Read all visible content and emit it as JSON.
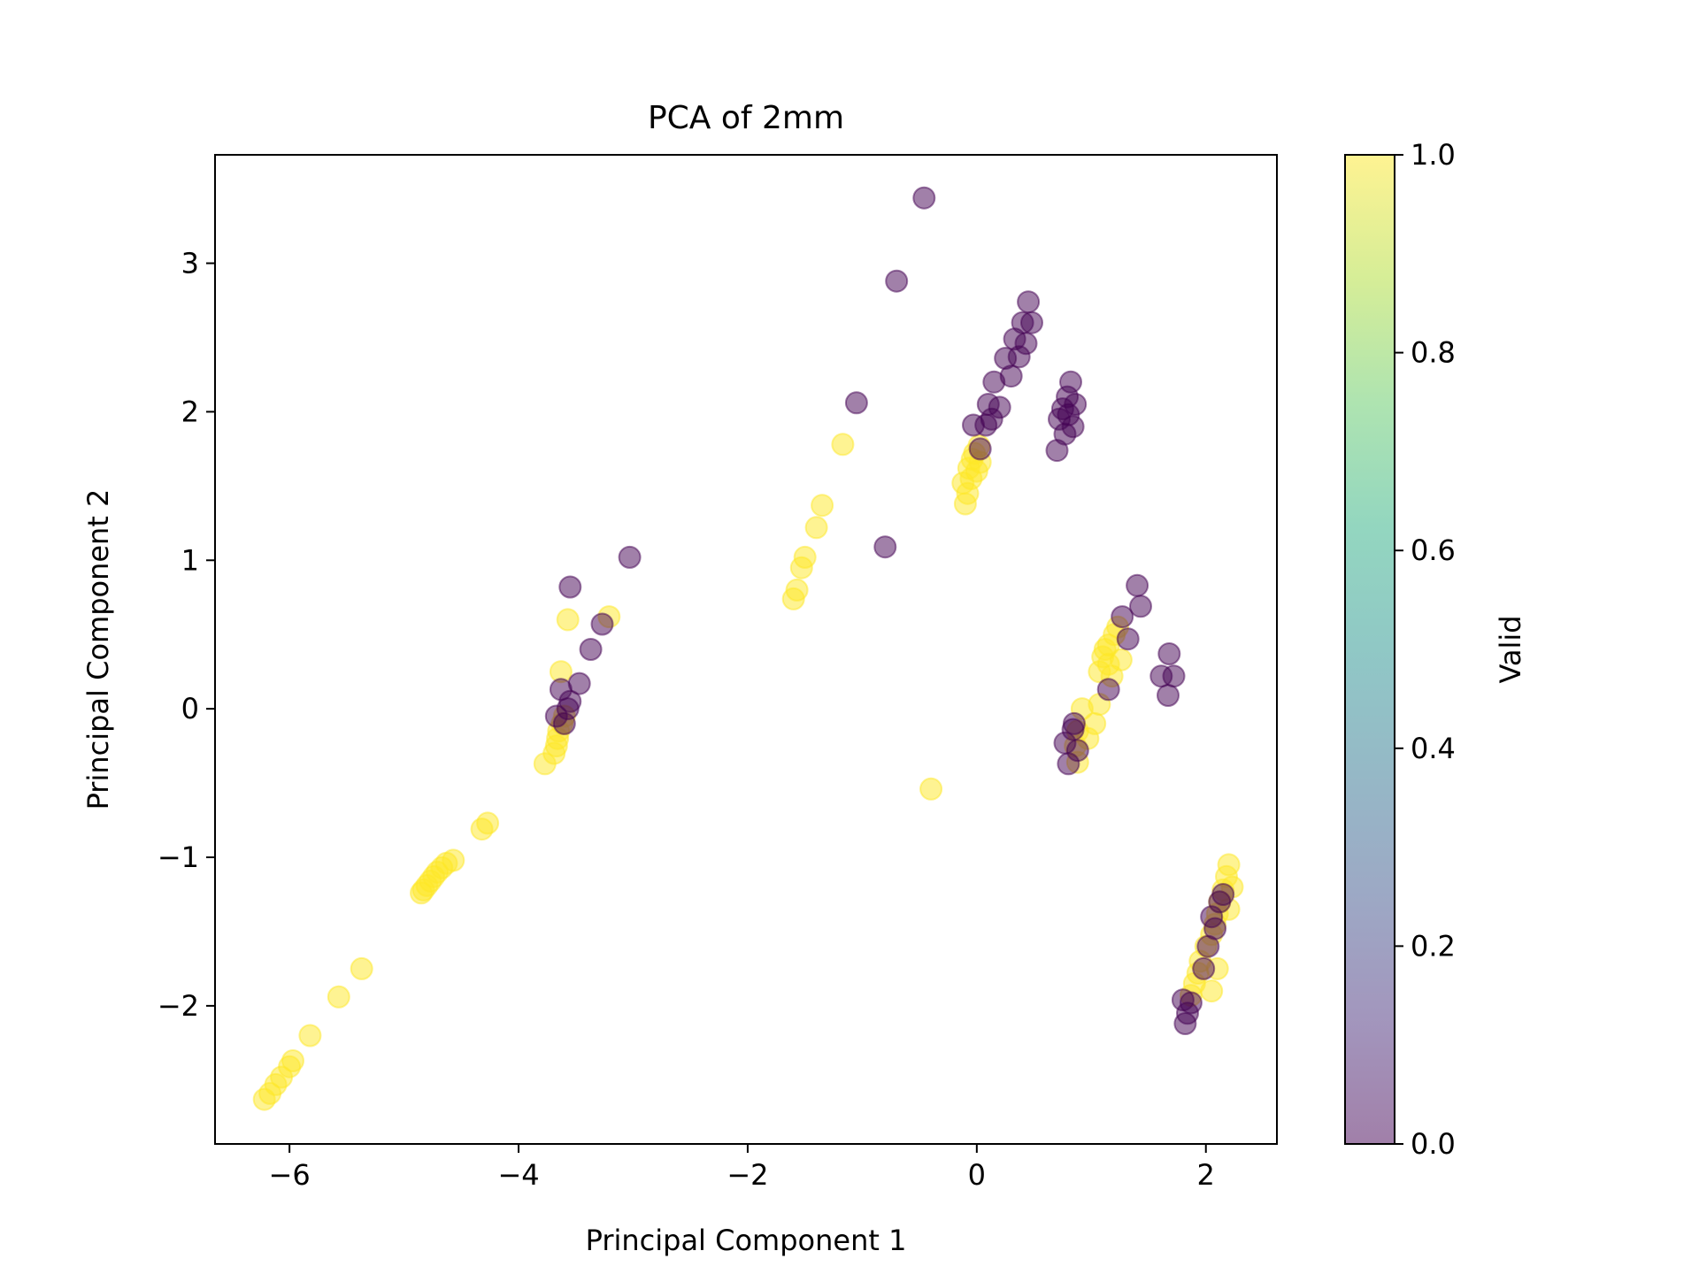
{
  "chart_data": {
    "type": "scatter",
    "title": "PCA of 2mm",
    "xlabel": "Principal Component 1",
    "ylabel": "Principal Component 2",
    "xlim": [
      -6.65,
      2.62
    ],
    "ylim": [
      -2.93,
      3.73
    ],
    "xticks": [
      -6,
      -4,
      -2,
      0,
      2
    ],
    "yticks": [
      -2,
      -1,
      0,
      1,
      2,
      3
    ],
    "grid": false,
    "colorbar": {
      "label": "Valid",
      "range": [
        0.0,
        1.0
      ],
      "ticks": [
        "0.0",
        "0.2",
        "0.4",
        "0.6",
        "0.8",
        "1.0"
      ],
      "colormap": "viridis",
      "alpha": 0.5
    },
    "colors": {
      "valid_0": "#440154",
      "valid_1": "#fde725"
    },
    "series": [
      {
        "valid": 1,
        "points": [
          [
            -6.22,
            -2.63
          ],
          [
            -6.17,
            -2.59
          ],
          [
            -6.12,
            -2.53
          ],
          [
            -6.07,
            -2.48
          ],
          [
            -6.0,
            -2.41
          ],
          [
            -5.97,
            -2.37
          ],
          [
            -5.82,
            -2.2
          ],
          [
            -5.57,
            -1.94
          ],
          [
            -5.37,
            -1.75
          ],
          [
            -4.85,
            -1.24
          ],
          [
            -4.83,
            -1.22
          ],
          [
            -4.8,
            -1.19
          ],
          [
            -4.77,
            -1.16
          ],
          [
            -4.74,
            -1.13
          ],
          [
            -4.71,
            -1.1
          ],
          [
            -4.67,
            -1.07
          ],
          [
            -4.63,
            -1.04
          ],
          [
            -4.57,
            -1.02
          ],
          [
            -4.32,
            -0.81
          ],
          [
            -4.27,
            -0.77
          ],
          [
            -3.77,
            -0.37
          ],
          [
            -3.69,
            -0.3
          ],
          [
            -3.67,
            -0.25
          ],
          [
            -3.66,
            -0.2
          ],
          [
            -3.65,
            -0.15
          ],
          [
            -3.62,
            -0.1
          ],
          [
            -3.6,
            -0.05
          ],
          [
            -3.63,
            0.25
          ],
          [
            -3.57,
            0.6
          ],
          [
            -3.21,
            0.62
          ],
          [
            -1.6,
            0.74
          ],
          [
            -1.57,
            0.8
          ],
          [
            -1.53,
            0.95
          ],
          [
            -1.5,
            1.02
          ],
          [
            -1.4,
            1.22
          ],
          [
            -1.35,
            1.37
          ],
          [
            -1.17,
            1.78
          ],
          [
            -0.4,
            -0.54
          ],
          [
            -0.1,
            1.38
          ],
          [
            -0.12,
            1.52
          ],
          [
            -0.08,
            1.45
          ],
          [
            -0.05,
            1.55
          ],
          [
            -0.07,
            1.62
          ],
          [
            -0.04,
            1.68
          ],
          [
            -0.02,
            1.72
          ],
          [
            0.0,
            1.6
          ],
          [
            0.02,
            1.77
          ],
          [
            0.03,
            1.66
          ],
          [
            0.88,
            -0.36
          ],
          [
            0.86,
            -0.25
          ],
          [
            0.88,
            -0.15
          ],
          [
            0.92,
            0.0
          ],
          [
            0.97,
            -0.2
          ],
          [
            1.03,
            -0.1
          ],
          [
            1.07,
            0.03
          ],
          [
            1.07,
            0.25
          ],
          [
            1.1,
            0.35
          ],
          [
            1.12,
            0.4
          ],
          [
            1.15,
            0.43
          ],
          [
            1.15,
            0.3
          ],
          [
            1.18,
            0.22
          ],
          [
            1.2,
            0.5
          ],
          [
            1.23,
            0.55
          ],
          [
            1.26,
            0.33
          ],
          [
            1.87,
            -1.93
          ],
          [
            1.9,
            -1.85
          ],
          [
            1.93,
            -1.78
          ],
          [
            1.95,
            -1.7
          ],
          [
            2.0,
            -1.6
          ],
          [
            2.05,
            -1.52
          ],
          [
            2.08,
            -1.45
          ],
          [
            2.1,
            -1.38
          ],
          [
            2.12,
            -1.3
          ],
          [
            2.15,
            -1.22
          ],
          [
            2.18,
            -1.13
          ],
          [
            2.2,
            -1.05
          ],
          [
            2.23,
            -1.2
          ],
          [
            2.2,
            -1.35
          ],
          [
            2.05,
            -1.9
          ],
          [
            2.1,
            -1.75
          ]
        ]
      },
      {
        "valid": 0,
        "points": [
          [
            -3.67,
            -0.05
          ],
          [
            -3.63,
            0.13
          ],
          [
            -3.6,
            -0.1
          ],
          [
            -3.57,
            0.0
          ],
          [
            -3.55,
            0.05
          ],
          [
            -3.55,
            0.82
          ],
          [
            -3.47,
            0.17
          ],
          [
            -3.37,
            0.4
          ],
          [
            -3.27,
            0.57
          ],
          [
            -3.03,
            1.02
          ],
          [
            -1.05,
            2.06
          ],
          [
            -0.8,
            1.09
          ],
          [
            -0.7,
            2.88
          ],
          [
            -0.46,
            3.44
          ],
          [
            -0.03,
            1.91
          ],
          [
            0.03,
            1.75
          ],
          [
            0.08,
            1.91
          ],
          [
            0.1,
            2.05
          ],
          [
            0.13,
            1.95
          ],
          [
            0.15,
            2.2
          ],
          [
            0.2,
            2.03
          ],
          [
            0.25,
            2.36
          ],
          [
            0.3,
            2.24
          ],
          [
            0.33,
            2.49
          ],
          [
            0.37,
            2.37
          ],
          [
            0.4,
            2.6
          ],
          [
            0.43,
            2.46
          ],
          [
            0.45,
            2.74
          ],
          [
            0.48,
            2.6
          ],
          [
            0.7,
            1.74
          ],
          [
            0.72,
            1.95
          ],
          [
            0.75,
            2.02
          ],
          [
            0.77,
            1.85
          ],
          [
            0.79,
            2.1
          ],
          [
            0.8,
            1.98
          ],
          [
            0.82,
            2.2
          ],
          [
            0.84,
            1.9
          ],
          [
            0.86,
            2.05
          ],
          [
            0.77,
            -0.23
          ],
          [
            0.8,
            -0.37
          ],
          [
            0.84,
            -0.14
          ],
          [
            0.88,
            -0.28
          ],
          [
            0.85,
            -0.1
          ],
          [
            1.15,
            0.13
          ],
          [
            1.27,
            0.62
          ],
          [
            1.32,
            0.47
          ],
          [
            1.4,
            0.83
          ],
          [
            1.43,
            0.69
          ],
          [
            1.61,
            0.22
          ],
          [
            1.67,
            0.09
          ],
          [
            1.68,
            0.37
          ],
          [
            1.72,
            0.22
          ],
          [
            1.8,
            -1.96
          ],
          [
            1.82,
            -2.12
          ],
          [
            1.84,
            -2.05
          ],
          [
            1.87,
            -1.98
          ],
          [
            1.98,
            -1.75
          ],
          [
            2.02,
            -1.6
          ],
          [
            2.05,
            -1.4
          ],
          [
            2.08,
            -1.48
          ],
          [
            2.12,
            -1.3
          ],
          [
            2.15,
            -1.25
          ]
        ]
      }
    ]
  }
}
